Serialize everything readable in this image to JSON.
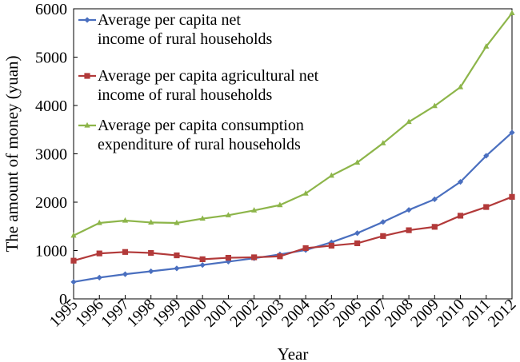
{
  "chart_data": {
    "type": "line",
    "title": "",
    "xlabel": "Year",
    "ylabel": "The amount of money (yuan)",
    "ylim": [
      0,
      6000
    ],
    "yticks": [
      0,
      1000,
      2000,
      3000,
      4000,
      5000,
      6000
    ],
    "grid": false,
    "legend_position": "top-left",
    "categories": [
      "1995",
      "1996",
      "1997",
      "1998",
      "1999",
      "2000",
      "2001",
      "2002",
      "2003",
      "2004",
      "2005",
      "2006",
      "2007",
      "2008",
      "2009",
      "2010",
      "2011",
      "2012"
    ],
    "series": [
      {
        "name": "Average per capita net income of rural households",
        "legend_lines": [
          "Average per capita net",
          "income of rural households"
        ],
        "color": "#4a6fbf",
        "marker": "diamond",
        "values": [
          350,
          440,
          510,
          570,
          630,
          700,
          770,
          840,
          920,
          1010,
          1170,
          1360,
          1590,
          1840,
          2060,
          2420,
          2960,
          3440
        ]
      },
      {
        "name": "Average per capita agricultural net income of rural households",
        "legend_lines": [
          "Average per capita agricultural net",
          "income of rural households"
        ],
        "color": "#b23a3a",
        "marker": "square",
        "values": [
          790,
          940,
          970,
          950,
          900,
          820,
          850,
          860,
          880,
          1050,
          1100,
          1150,
          1300,
          1420,
          1490,
          1720,
          1900,
          2110
        ]
      },
      {
        "name": "Average per capita consumption expenditure of rural households",
        "legend_lines": [
          "Average per capita consumption",
          "expenditure of rural households"
        ],
        "color": "#8db54a",
        "marker": "triangle",
        "values": [
          1310,
          1570,
          1620,
          1580,
          1570,
          1660,
          1730,
          1830,
          1940,
          2180,
          2550,
          2820,
          3220,
          3660,
          3990,
          4380,
          5220,
          5910
        ]
      }
    ]
  }
}
